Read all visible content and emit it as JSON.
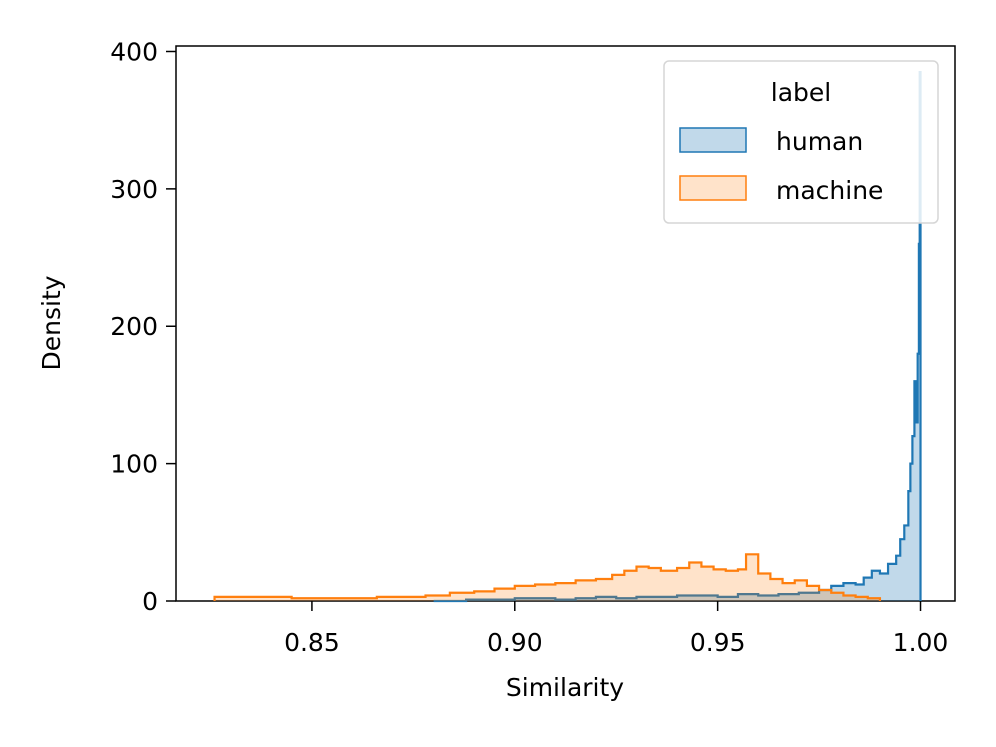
{
  "chart_data": {
    "type": "histogram",
    "xlabel": "Similarity",
    "ylabel": "Density",
    "xlim": [
      0.8165,
      1.0085
    ],
    "ylim": [
      0,
      404
    ],
    "xticks": [
      0.85,
      0.9,
      0.95,
      1.0
    ],
    "xtick_labels": [
      "0.85",
      "0.90",
      "0.95",
      "1.00"
    ],
    "yticks": [
      0,
      100,
      200,
      300,
      400
    ],
    "ytick_labels": [
      "0",
      "100",
      "200",
      "300",
      "400"
    ],
    "grid": false,
    "legend": {
      "title": "label",
      "placement": "top-right",
      "entries": [
        "human",
        "machine"
      ]
    },
    "series": [
      {
        "name": "human",
        "color": "#1f77b4",
        "fill": "rgba(31,119,180,0.28)",
        "points": [
          [
            0.88,
            0
          ],
          [
            0.888,
            1
          ],
          [
            0.895,
            1
          ],
          [
            0.9,
            2
          ],
          [
            0.905,
            2
          ],
          [
            0.91,
            1
          ],
          [
            0.915,
            2
          ],
          [
            0.92,
            3
          ],
          [
            0.925,
            2
          ],
          [
            0.93,
            3
          ],
          [
            0.935,
            3
          ],
          [
            0.94,
            4
          ],
          [
            0.945,
            4
          ],
          [
            0.95,
            3
          ],
          [
            0.955,
            5
          ],
          [
            0.96,
            4
          ],
          [
            0.965,
            5
          ],
          [
            0.97,
            6
          ],
          [
            0.975,
            8
          ],
          [
            0.978,
            11
          ],
          [
            0.981,
            13
          ],
          [
            0.984,
            12
          ],
          [
            0.986,
            17
          ],
          [
            0.988,
            22
          ],
          [
            0.99,
            20
          ],
          [
            0.992,
            27
          ],
          [
            0.994,
            33
          ],
          [
            0.995,
            45
          ],
          [
            0.996,
            55
          ],
          [
            0.997,
            80
          ],
          [
            0.9975,
            100
          ],
          [
            0.998,
            120
          ],
          [
            0.9985,
            160
          ],
          [
            0.999,
            130
          ],
          [
            0.9993,
            180
          ],
          [
            0.9996,
            260
          ],
          [
            0.9998,
            385
          ],
          [
            1.0,
            0
          ]
        ]
      },
      {
        "name": "machine",
        "color": "#ff7f0e",
        "fill": "rgba(255,127,14,0.22)",
        "points": [
          [
            0.826,
            3
          ],
          [
            0.838,
            3
          ],
          [
            0.845,
            2
          ],
          [
            0.853,
            2
          ],
          [
            0.86,
            2
          ],
          [
            0.866,
            3
          ],
          [
            0.872,
            3
          ],
          [
            0.878,
            4
          ],
          [
            0.884,
            6
          ],
          [
            0.89,
            7
          ],
          [
            0.895,
            9
          ],
          [
            0.9,
            11
          ],
          [
            0.905,
            12
          ],
          [
            0.91,
            13
          ],
          [
            0.915,
            15
          ],
          [
            0.92,
            16
          ],
          [
            0.924,
            19
          ],
          [
            0.927,
            22
          ],
          [
            0.93,
            25
          ],
          [
            0.933,
            24
          ],
          [
            0.936,
            22
          ],
          [
            0.94,
            24
          ],
          [
            0.943,
            28
          ],
          [
            0.946,
            25
          ],
          [
            0.949,
            23
          ],
          [
            0.952,
            22
          ],
          [
            0.955,
            23
          ],
          [
            0.957,
            34
          ],
          [
            0.96,
            20
          ],
          [
            0.963,
            16
          ],
          [
            0.966,
            13
          ],
          [
            0.969,
            15
          ],
          [
            0.972,
            11
          ],
          [
            0.975,
            8
          ],
          [
            0.978,
            6
          ],
          [
            0.981,
            4
          ],
          [
            0.984,
            3
          ],
          [
            0.987,
            2
          ],
          [
            0.99,
            0
          ]
        ]
      }
    ]
  }
}
